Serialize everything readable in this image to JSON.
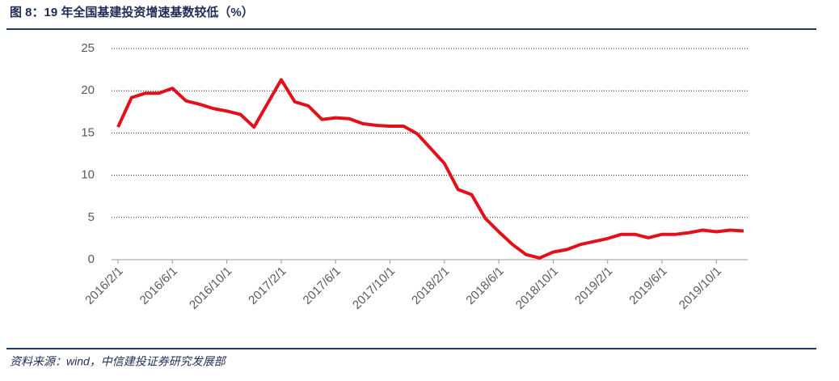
{
  "chart_data": {
    "type": "line",
    "title": "图 8：19 年全国基建投资增速基数较低（%）",
    "source": "资料来源：wind，中信建投证券研究发展部",
    "x": [
      "2016/2/1",
      "2016/3/1",
      "2016/4/1",
      "2016/5/1",
      "2016/6/1",
      "2016/7/1",
      "2016/8/1",
      "2016/9/1",
      "2016/10/1",
      "2016/11/1",
      "2016/12/1",
      "2017/2/1",
      "2017/3/1",
      "2017/4/1",
      "2017/5/1",
      "2017/6/1",
      "2017/7/1",
      "2017/8/1",
      "2017/9/1",
      "2017/10/1",
      "2017/11/1",
      "2017/12/1",
      "2018/2/1",
      "2018/3/1",
      "2018/4/1",
      "2018/5/1",
      "2018/6/1",
      "2018/7/1",
      "2018/8/1",
      "2018/9/1",
      "2018/10/1",
      "2018/11/1",
      "2018/12/1",
      "2019/2/1",
      "2019/3/1",
      "2019/4/1",
      "2019/5/1",
      "2019/6/1",
      "2019/7/1",
      "2019/8/1",
      "2019/9/1",
      "2019/10/1",
      "2019/11/1",
      "2019/12/1"
    ],
    "series": [
      {
        "color": "#e3101b",
        "values": [
          15.7,
          19.2,
          19.7,
          19.7,
          20.3,
          18.8,
          18.4,
          17.9,
          17.6,
          17.2,
          15.7,
          21.3,
          18.7,
          18.2,
          16.6,
          16.8,
          16.7,
          16.1,
          15.9,
          15.8,
          15.8,
          14.9,
          11.4,
          8.3,
          7.7,
          4.9,
          3.3,
          1.8,
          0.6,
          0.2,
          0.9,
          1.2,
          1.8,
          2.5,
          3.0,
          3.0,
          2.6,
          3.0,
          3.0,
          3.2,
          3.5,
          3.3,
          3.5,
          3.4
        ]
      }
    ],
    "xlim": [
      "2016/2/1",
      "2019/12/1"
    ],
    "xticks": [
      "2016/2/1",
      "2016/6/1",
      "2016/10/1",
      "2017/2/1",
      "2017/6/1",
      "2017/10/1",
      "2018/2/1",
      "2018/6/1",
      "2018/10/1",
      "2019/2/1",
      "2019/6/1",
      "2019/10/1"
    ],
    "ylim": [
      0,
      25
    ],
    "yticks": [
      0,
      5,
      10,
      15,
      20,
      25
    ],
    "grid": true
  }
}
